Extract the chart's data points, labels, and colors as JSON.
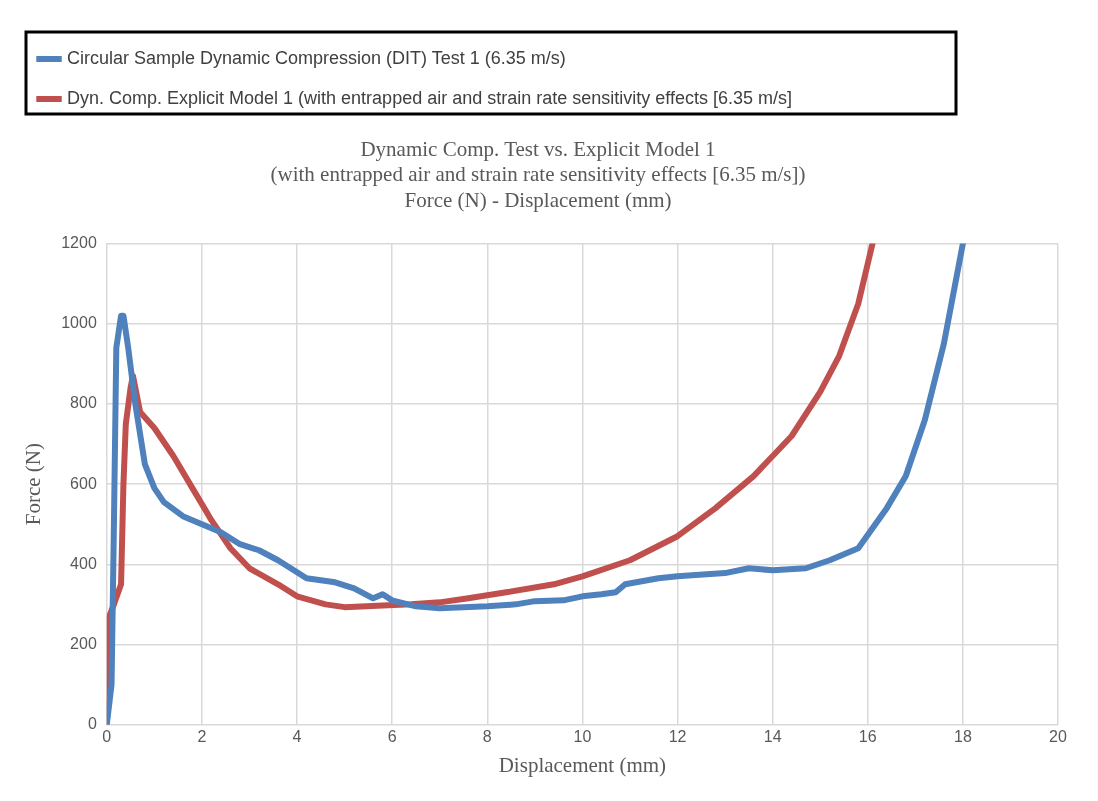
{
  "chart_data": {
    "type": "line",
    "title": [
      "Dynamic Comp. Test vs. Explicit Model 1",
      "(with entrapped air and strain rate sensitivity effects [6.35 m/s])",
      "Force (N) - Displacement (mm)"
    ],
    "xlabel": "Displacement (mm)",
    "ylabel": "Force (N)",
    "xlim": [
      0,
      20
    ],
    "xticks": [
      0,
      2,
      4,
      6,
      8,
      10,
      12,
      14,
      16,
      18,
      20
    ],
    "ylim": [
      0,
      1200
    ],
    "yticks": [
      0,
      200,
      400,
      600,
      800,
      1000,
      1200
    ],
    "grid": true,
    "legend": "top",
    "marker": "none",
    "line_style": "solid",
    "series": [
      {
        "name": "Circular Sample Dynamic Compression (DIT) Test 1 (6.35 m/s)",
        "color": "#4f81bd",
        "x": [
          0,
          0.1,
          0.15,
          0.2,
          0.3,
          0.35,
          0.45,
          0.6,
          0.8,
          1.0,
          1.2,
          1.6,
          2.0,
          2.4,
          2.8,
          3.2,
          3.6,
          4.0,
          4.2,
          4.8,
          5.2,
          5.6,
          5.8,
          6.0,
          6.5,
          7.0,
          8.0,
          8.6,
          9.0,
          9.6,
          10.0,
          10.4,
          10.7,
          10.9,
          11.6,
          12.0,
          13.0,
          13.5,
          14.0,
          14.7,
          15.2,
          15.8,
          16.4,
          16.8,
          17.2,
          17.6,
          18.0
        ],
        "values": [
          0,
          100,
          500,
          940,
          1020,
          1020,
          940,
          800,
          650,
          590,
          555,
          520,
          500,
          480,
          450,
          435,
          410,
          380,
          365,
          355,
          340,
          315,
          325,
          310,
          295,
          290,
          295,
          300,
          308,
          310,
          320,
          325,
          330,
          350,
          365,
          370,
          378,
          390,
          385,
          390,
          410,
          440,
          540,
          620,
          760,
          950,
          1200
        ]
      },
      {
        "name": "Dyn. Comp. Explicit Model 1 (with entrapped air and strain rate sensitivity effects [6.35 m/s]",
        "color": "#c0504d",
        "x": [
          0,
          0.02,
          0.15,
          0.3,
          0.35,
          0.4,
          0.5,
          0.55,
          0.7,
          1.0,
          1.4,
          1.8,
          2.2,
          2.6,
          3.0,
          3.6,
          4.0,
          4.6,
          5.0,
          5.8,
          6.4,
          7.0,
          7.6,
          8.4,
          9.4,
          10.0,
          11.0,
          12.0,
          12.8,
          13.6,
          14.4,
          15.0,
          15.4,
          15.8,
          16.0,
          16.1
        ],
        "values": [
          0,
          260,
          300,
          350,
          600,
          750,
          840,
          870,
          780,
          740,
          670,
          590,
          510,
          440,
          390,
          350,
          320,
          300,
          293,
          297,
          300,
          305,
          315,
          330,
          350,
          370,
          410,
          470,
          540,
          620,
          720,
          830,
          920,
          1050,
          1150,
          1200
        ]
      }
    ]
  }
}
